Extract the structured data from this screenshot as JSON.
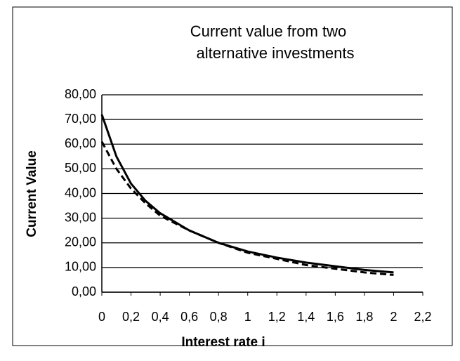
{
  "chart_data": {
    "type": "line",
    "title": [
      "Current value from two",
      "alternative investments"
    ],
    "x_label": "Interest rate i",
    "y_label": "Current Value",
    "x": [
      0,
      0.1,
      0.2,
      0.3,
      0.4,
      0.6,
      0.8,
      1.0,
      1.2,
      1.4,
      1.6,
      1.8,
      2.0
    ],
    "series": [
      {
        "color": "#000000",
        "dash": false,
        "values": [
          72,
          55,
          44,
          37,
          32,
          25,
          20,
          16.5,
          14,
          12,
          10.5,
          9,
          8
        ]
      },
      {
        "color": "#000000",
        "dash": true,
        "values": [
          61,
          50,
          42,
          36,
          31,
          25,
          20,
          16,
          13.5,
          11,
          9.5,
          8,
          7
        ]
      }
    ],
    "xlim": [
      0,
      2.2
    ],
    "xticks": [
      0,
      {
        "value": 0.2,
        "label": "0,2"
      },
      {
        "value": 0.4,
        "label": "0,4"
      },
      {
        "value": 0.6,
        "label": "0,6"
      },
      {
        "value": 0.8,
        "label": "0,8"
      },
      1,
      {
        "value": 1.2,
        "label": "1,2"
      },
      {
        "value": 1.4,
        "label": "1,4"
      },
      {
        "value": 1.6,
        "label": "1,6"
      },
      {
        "value": 1.8,
        "label": "1,8"
      },
      2,
      {
        "value": 2.2,
        "label": "2,2"
      }
    ],
    "ylim": [
      0,
      80
    ],
    "yticks": [
      {
        "value": 0,
        "label": "0,00"
      },
      {
        "value": 10,
        "label": "10,00"
      },
      {
        "value": 20,
        "label": "20,00"
      },
      {
        "value": 30,
        "label": "30,00"
      },
      {
        "value": 40,
        "label": "40,00"
      },
      {
        "value": 50,
        "label": "50,00"
      },
      {
        "value": 60,
        "label": "60,00"
      },
      {
        "value": 70,
        "label": "70,00"
      },
      {
        "value": 80,
        "label": "80,00"
      }
    ],
    "grid": true
  }
}
